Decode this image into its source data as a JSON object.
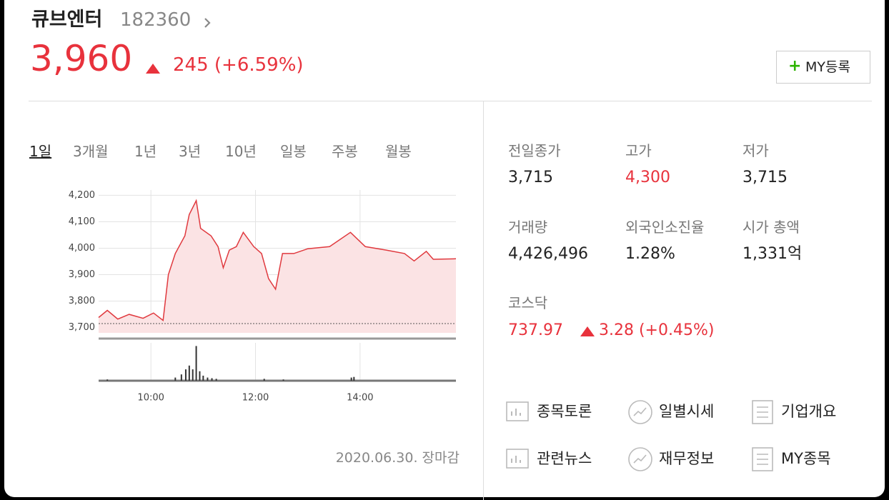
{
  "header": {
    "name": "큐브엔터",
    "code": "182360",
    "price": "3,960",
    "change": "245 (+6.59%)",
    "button": "MY등록"
  },
  "tabs": [
    "1일",
    "3개월",
    "1년",
    "3년",
    "10년",
    "일봉",
    "주봉",
    "월봉"
  ],
  "chart_data": {
    "type": "line",
    "color": "#e0393e",
    "fill": "#fbe3e4",
    "x": [
      "09:00",
      "09:10",
      "09:22",
      "09:35",
      "09:51",
      "10:03",
      "10:14",
      "10:20",
      "10:28",
      "10:39",
      "10:44",
      "10:52",
      "10:57",
      "11:09",
      "11:17",
      "11:23",
      "11:30",
      "11:38",
      "11:46",
      "11:58",
      "12:07",
      "12:15",
      "12:23",
      "12:31",
      "12:44",
      "13:00",
      "13:25",
      "13:49",
      "14:06",
      "14:30",
      "14:51",
      "15:02",
      "15:16",
      "15:24",
      "15:50"
    ],
    "values": [
      3738,
      3765,
      3732,
      3750,
      3735,
      3755,
      3727,
      3900,
      3980,
      4047,
      4127,
      4180,
      4075,
      4047,
      4006,
      3926,
      3993,
      4006,
      4060,
      4006,
      3980,
      3885,
      3845,
      3980,
      3980,
      3998,
      4006,
      4060,
      4006,
      3993,
      3980,
      3952,
      3988,
      3958,
      3960
    ],
    "reference_line": 3715,
    "xlim": [
      "09:00",
      "15:50"
    ],
    "xticks": [
      "10:00",
      "12:00",
      "14:00"
    ],
    "ylim": [
      3680,
      4220
    ],
    "yticks": [
      {
        "value": 3700,
        "label": "3,700"
      },
      {
        "value": 3800,
        "label": "3,800"
      },
      {
        "value": 3900,
        "label": "3,900"
      },
      {
        "value": 4000,
        "label": "4,000"
      },
      {
        "value": 4100,
        "label": "4,100"
      },
      {
        "value": 4200,
        "label": "4,200"
      }
    ],
    "grid": true,
    "volume": {
      "color": "#333333",
      "x": [
        "09:10",
        "10:28",
        "10:35",
        "10:40",
        "10:44",
        "10:48",
        "10:52",
        "10:56",
        "11:00",
        "11:05",
        "11:10",
        "11:15",
        "12:10",
        "12:32",
        "13:50",
        "13:53"
      ],
      "values": [
        2,
        5,
        10,
        18,
        24,
        18,
        55,
        15,
        8,
        5,
        4,
        3,
        3,
        2,
        5,
        6
      ],
      "vlim": [
        0,
        60
      ]
    }
  },
  "date_note": "2020.06.30. 장마감",
  "stats": [
    {
      "label": "전일종가",
      "value": "3,715"
    },
    {
      "label": "고가",
      "value": "4,300"
    },
    {
      "label": "저가",
      "value": "3,715"
    },
    {
      "label": "거래량",
      "value": "4,426,496"
    },
    {
      "label": "외국인소진율",
      "value": "1.28%"
    },
    {
      "label": "시가 총액",
      "value": "1,331억"
    }
  ],
  "index": {
    "name": "코스닥",
    "value": "737.97",
    "change": "3.28 (+0.45%)"
  },
  "links": [
    "종목토론",
    "일별시세",
    "기업개요",
    "관련뉴스",
    "재무정보",
    "MY종목"
  ]
}
